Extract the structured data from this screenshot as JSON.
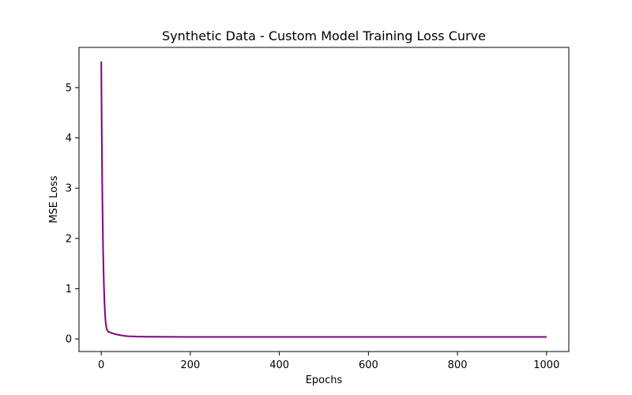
{
  "chart_data": {
    "type": "line",
    "title": "Synthetic Data - Custom Model Training Loss Curve",
    "xlabel": "Epochs",
    "ylabel": "MSE Loss",
    "xlim": [
      -50,
      1050
    ],
    "ylim": [
      -0.25,
      5.8
    ],
    "grid": false,
    "legend": "none",
    "x_ticks": [
      0,
      200,
      400,
      600,
      800,
      1000
    ],
    "x_tick_labels": [
      "0",
      "200",
      "400",
      "600",
      "800",
      "1000"
    ],
    "y_ticks": [
      0,
      1,
      2,
      3,
      4,
      5
    ],
    "y_tick_labels": [
      "0",
      "1",
      "2",
      "3",
      "4",
      "5"
    ],
    "series": [
      {
        "color": "#800080",
        "x": [
          0,
          1,
          2,
          3,
          4,
          5,
          6,
          7,
          8,
          9,
          10,
          12,
          15,
          20,
          25,
          30,
          40,
          50,
          60,
          80,
          100,
          150,
          200,
          300,
          400,
          500,
          600,
          700,
          800,
          900,
          1000
        ],
        "y": [
          5.52,
          4.2,
          3.2,
          2.45,
          1.85,
          1.4,
          1.05,
          0.78,
          0.58,
          0.43,
          0.32,
          0.2,
          0.15,
          0.13,
          0.115,
          0.1,
          0.08,
          0.065,
          0.055,
          0.048,
          0.045,
          0.042,
          0.04,
          0.04,
          0.04,
          0.04,
          0.04,
          0.04,
          0.04,
          0.04,
          0.04
        ]
      }
    ]
  }
}
